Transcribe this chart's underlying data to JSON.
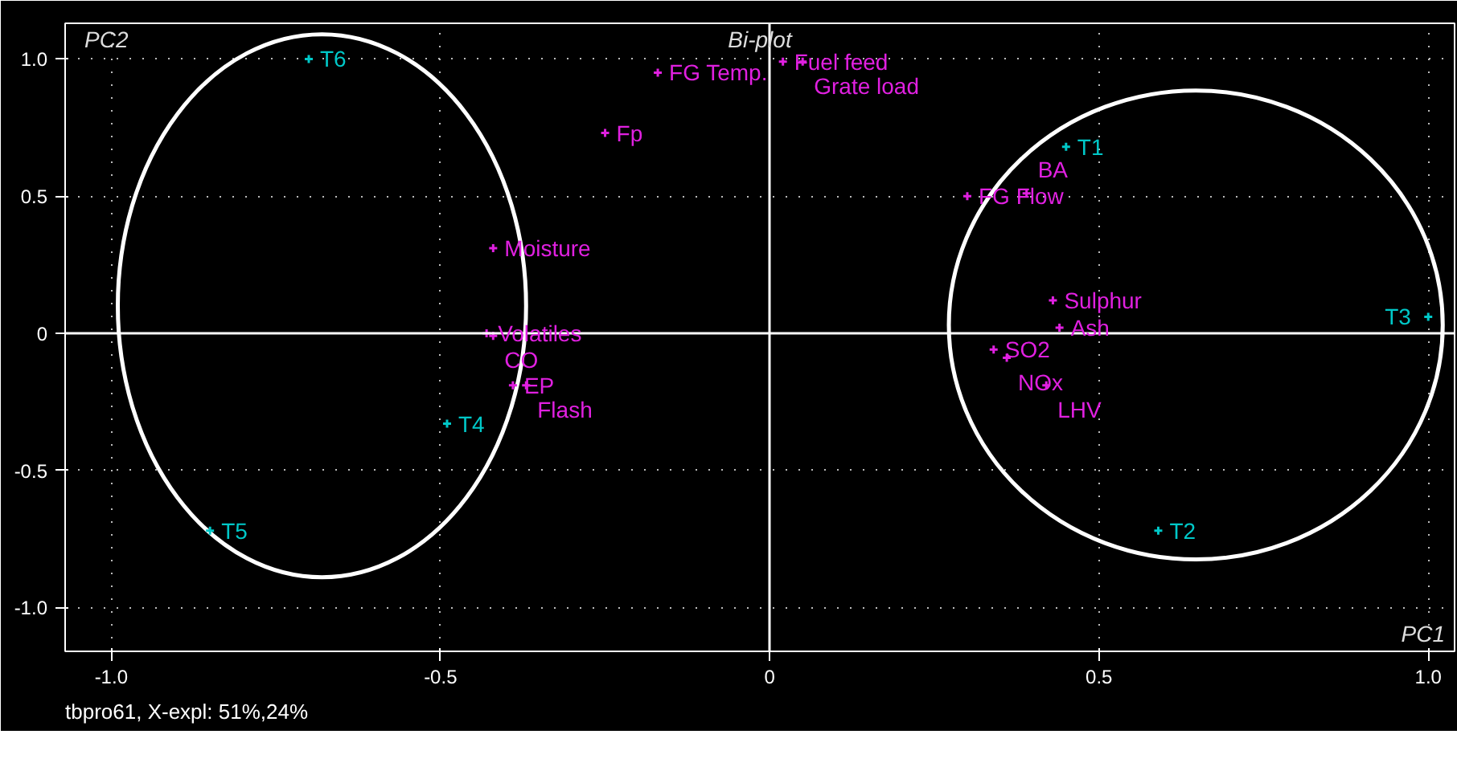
{
  "chart_data": {
    "type": "scatter",
    "title": "Bi-plot",
    "xlabel": "PC1",
    "ylabel": "PC2",
    "xlim": [
      -1.07,
      1.04
    ],
    "ylim": [
      -1.16,
      1.13
    ],
    "xticks": [
      {
        "value": -1,
        "label": "-1.0"
      },
      {
        "value": -0.5,
        "label": "-0.5"
      },
      0,
      0.5,
      {
        "value": 1,
        "label": "1.0"
      }
    ],
    "yticks": [
      {
        "value": -1,
        "label": "-1.0"
      },
      {
        "value": -0.5,
        "label": "-0.5"
      },
      0,
      0.5,
      {
        "value": 1,
        "label": "1.0"
      }
    ],
    "grid": true,
    "marker": "cross",
    "series": [
      {
        "color": "#e020e0",
        "x": [
          -0.17,
          0.02,
          0.05,
          -0.25,
          0.3,
          0.39,
          -0.42,
          -0.43,
          -0.42,
          -0.39,
          -0.37,
          0.43,
          0.44,
          0.34,
          0.36,
          0.42
        ],
        "values": [
          0.95,
          0.99,
          0.99,
          0.73,
          0.5,
          0.51,
          0.31,
          0.0,
          -0.01,
          -0.19,
          -0.19,
          0.12,
          0.02,
          -0.06,
          -0.09,
          -0.19
        ]
      },
      {
        "color": "#00c8c8",
        "x": [
          -0.7,
          0.45,
          1.0,
          -0.49,
          -0.85,
          0.59
        ],
        "values": [
          1.0,
          0.68,
          0.06,
          -0.33,
          -0.72,
          -0.72
        ]
      }
    ],
    "annotations": [
      {
        "text": "FG Temp.",
        "x": -0.17,
        "y": 0.95
      },
      {
        "text": "Fuel feed",
        "x": 0.02,
        "y": 0.99
      },
      {
        "text": "Grate load",
        "x": 0.05,
        "y": 0.99
      },
      {
        "text": "Fp",
        "x": -0.25,
        "y": 0.73
      },
      {
        "text": "FG Flow",
        "x": 0.3,
        "y": 0.5
      },
      {
        "text": "BA",
        "x": 0.39,
        "y": 0.51
      },
      {
        "text": "Moisture",
        "x": -0.42,
        "y": 0.31
      },
      {
        "text": "Volatiles",
        "x": -0.43,
        "y": 0.0
      },
      {
        "text": "CO",
        "x": -0.42,
        "y": -0.01
      },
      {
        "text": "EP",
        "x": -0.39,
        "y": -0.19
      },
      {
        "text": "Flash",
        "x": -0.37,
        "y": -0.19
      },
      {
        "text": "Sulphur",
        "x": 0.43,
        "y": 0.12
      },
      {
        "text": "Ash",
        "x": 0.44,
        "y": 0.02
      },
      {
        "text": "SO2",
        "x": 0.34,
        "y": -0.06
      },
      {
        "text": "NOx",
        "x": 0.36,
        "y": -0.09
      },
      {
        "text": "LHV",
        "x": 0.42,
        "y": -0.19
      },
      {
        "text": "T6",
        "x": -0.7,
        "y": 1.0
      },
      {
        "text": "T1",
        "x": 0.45,
        "y": 0.68
      },
      {
        "text": "T3",
        "x": 1.0,
        "y": 0.06
      },
      {
        "text": "T4",
        "x": -0.49,
        "y": -0.33
      },
      {
        "text": "T5",
        "x": -0.85,
        "y": -0.72
      },
      {
        "text": "T2",
        "x": 0.59,
        "y": -0.72
      },
      "tbpro61, X-expl: 51%,24%"
    ]
  }
}
